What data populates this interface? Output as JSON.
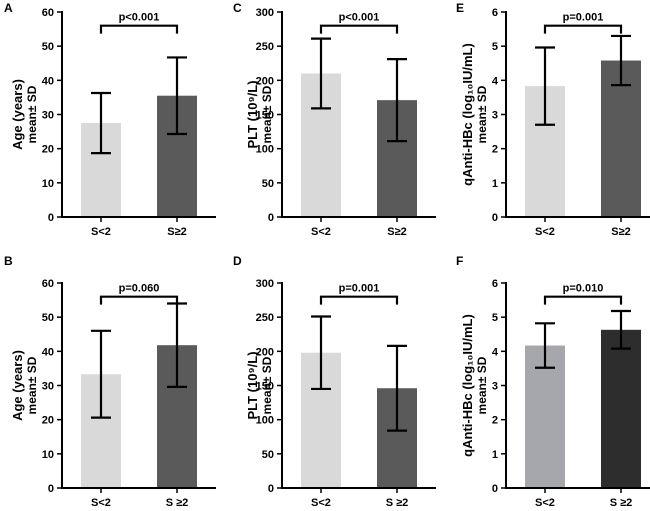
{
  "chart_data": [
    {
      "panel": "A",
      "type": "bar",
      "categories": [
        "S<2",
        "S≥2"
      ],
      "values": [
        27.5,
        35.5
      ],
      "sd": [
        8.8,
        11.2
      ],
      "bar_colors": [
        "#d9d9d9",
        "#5a5a5a"
      ],
      "ylim": [
        0,
        60
      ],
      "yticks": [
        "0",
        "10",
        "20",
        "30",
        "40",
        "50",
        "60"
      ],
      "ylabel_lines": [
        "Age (years)",
        "mean± SD"
      ],
      "significance": "p<0.001",
      "sig_level": 56
    },
    {
      "panel": "C",
      "type": "bar",
      "categories": [
        "S<2",
        "S≥2"
      ],
      "values": [
        210,
        171
      ],
      "sd": [
        51,
        60
      ],
      "bar_colors": [
        "#d9d9d9",
        "#5a5a5a"
      ],
      "ylim": [
        0,
        300
      ],
      "yticks": [
        "0",
        "50",
        "100",
        "150",
        "200",
        "250",
        "300"
      ],
      "ylabel_lines": [
        "PLT (10⁹/L)",
        "mean± SD"
      ],
      "significance": "p<0.001",
      "sig_level": 280
    },
    {
      "panel": "E",
      "type": "bar",
      "categories": [
        "S<2",
        "S≥2"
      ],
      "values": [
        3.83,
        4.58
      ],
      "sd": [
        1.13,
        0.72
      ],
      "bar_colors": [
        "#d9d9d9",
        "#5a5a5a"
      ],
      "ylim": [
        0,
        6
      ],
      "yticks": [
        "0",
        "1",
        "2",
        "3",
        "4",
        "5",
        "6"
      ],
      "ylabel_lines": [
        "qAnti-HBc (log₁₀IU/mL)",
        "mean± SD"
      ],
      "significance": "p=0.001",
      "sig_level": 5.6
    },
    {
      "panel": "B",
      "type": "bar",
      "categories": [
        "S<2",
        "S ≥2"
      ],
      "values": [
        33.3,
        41.8
      ],
      "sd": [
        12.7,
        12.2
      ],
      "bar_colors": [
        "#d9d9d9",
        "#5a5a5a"
      ],
      "ylim": [
        0,
        60
      ],
      "yticks": [
        "0",
        "10",
        "20",
        "30",
        "40",
        "50",
        "60"
      ],
      "ylabel_lines": [
        "Age (years)",
        "mean± SD"
      ],
      "significance": "p=0.060",
      "sig_level": 56
    },
    {
      "panel": "D",
      "type": "bar",
      "categories": [
        "S<2",
        "S ≥2"
      ],
      "values": [
        198,
        146
      ],
      "sd": [
        53,
        62
      ],
      "bar_colors": [
        "#d9d9d9",
        "#5a5a5a"
      ],
      "ylim": [
        0,
        300
      ],
      "yticks": [
        "0",
        "50",
        "100",
        "150",
        "200",
        "250",
        "300"
      ],
      "ylabel_lines": [
        "PLT (10⁹/L)",
        "mean± SD"
      ],
      "significance": "p=0.001",
      "sig_level": 280
    },
    {
      "panel": "F",
      "type": "bar",
      "categories": [
        "S<2",
        "S ≥2"
      ],
      "values": [
        4.17,
        4.63
      ],
      "sd": [
        0.65,
        0.55
      ],
      "bar_colors": [
        "#a6a6ad",
        "#2d2d2d"
      ],
      "ylim": [
        0,
        6
      ],
      "yticks": [
        "0",
        "1",
        "2",
        "3",
        "4",
        "5",
        "6"
      ],
      "ylabel_lines": [
        "qAnti-HBc (log₁₀IU/mL)",
        "mean± SD"
      ],
      "significance": "p=0.010",
      "sig_level": 5.6
    }
  ]
}
